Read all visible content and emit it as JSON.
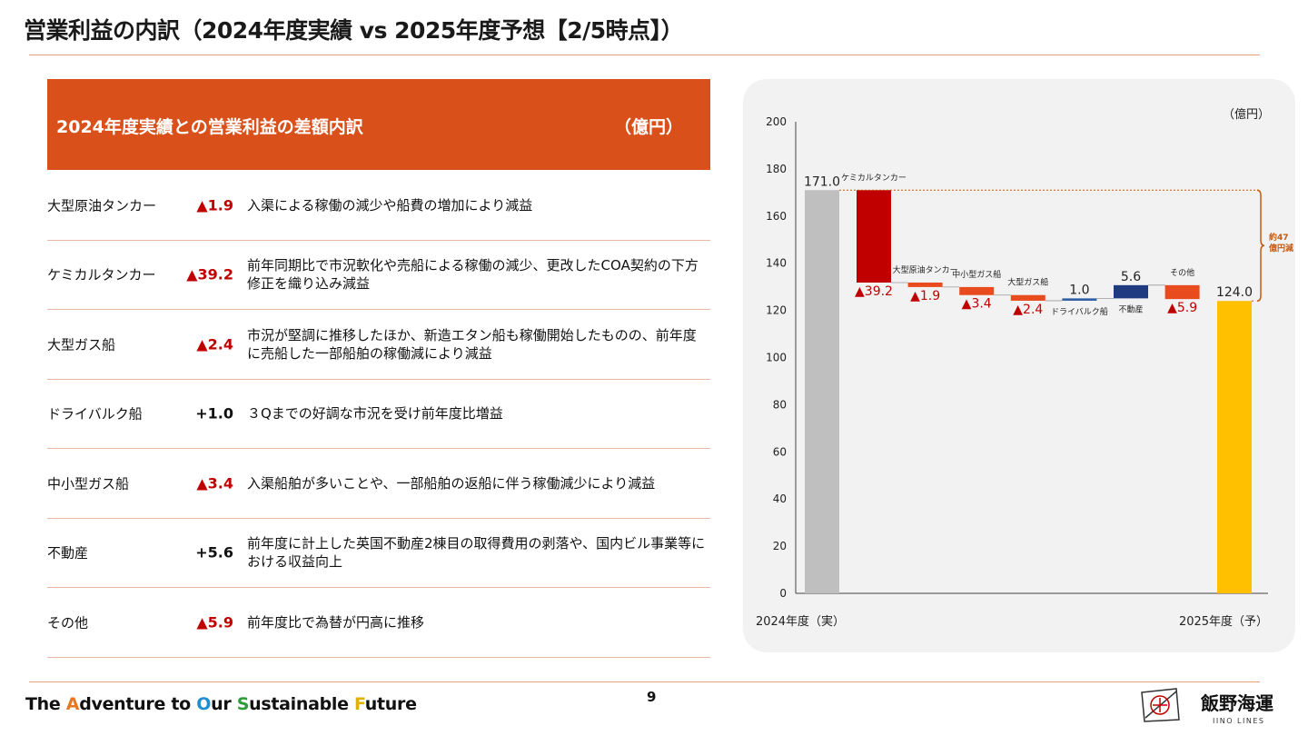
{
  "page": {
    "title": "営業利益の内訳（2024年度実績 vs 2025年度予想【2/5時点】）",
    "page_number": "9"
  },
  "table": {
    "header_title": "2024年度実績との営業利益の差額内訳",
    "header_unit": "（億円）",
    "rows": [
      {
        "segment": "大型原油タンカー",
        "value": "▲1.9",
        "description": "入渠による稼働の減少や船費の増加により減益"
      },
      {
        "segment": "ケミカルタンカー",
        "value": "▲39.2",
        "description": "前年同期比で市況軟化や売船による稼働の減少、更改したCOA契約の下方修正を織り込み減益"
      },
      {
        "segment": "大型ガス船",
        "value": "▲2.4",
        "description": "市況が堅調に推移したほか、新造エタン船も稼働開始したものの、前年度に売船した一部船舶の稼働減により減益"
      },
      {
        "segment": "ドライバルク船",
        "value": "+1.0",
        "description": "３Qまでの好調な市況を受け前年度比増益"
      },
      {
        "segment": "中小型ガス船",
        "value": "▲3.4",
        "description": "入渠船舶が多いことや、一部船舶の返船に伴う稼働減少により減益"
      },
      {
        "segment": "不動産",
        "value": "+5.6",
        "description": "前年度に計上した英国不動産2棟目の取得費用の剥落や、国内ビル事業等における収益向上"
      },
      {
        "segment": "その他",
        "value": "▲5.9",
        "description": "前年度比で為替が円高に推移"
      }
    ]
  },
  "chart_data": {
    "type": "waterfall",
    "unit_label": "（億円）",
    "ylim": [
      0,
      200
    ],
    "yticks": [
      "0",
      "20",
      "40",
      "60",
      "80",
      "100",
      "120",
      "140",
      "160",
      "180",
      "200"
    ],
    "start": {
      "label": "2024年度（実）",
      "value": 171.0,
      "value_label": "171.0",
      "color": "#bfbfbf"
    },
    "end": {
      "label": "2025年度（予）",
      "value": 124.0,
      "value_label": "124.0",
      "color": "#ffc000"
    },
    "steps": [
      {
        "name": "ケミカルタンカー",
        "delta": -39.2,
        "value_label": "▲39.2",
        "color": "#c00000"
      },
      {
        "name": "大型原油タンカー",
        "delta": -1.9,
        "value_label": "▲1.9",
        "color": "#e84c1e"
      },
      {
        "name": "中小型ガス船",
        "delta": -3.4,
        "value_label": "▲3.4",
        "color": "#e84c1e"
      },
      {
        "name": "大型ガス船",
        "delta": -2.4,
        "value_label": "▲2.4",
        "color": "#e84c1e"
      },
      {
        "name": "ドライバルク船",
        "delta": 1.0,
        "value_label": "1.0",
        "color": "#2e5fa3"
      },
      {
        "name": "不動産",
        "delta": 5.6,
        "value_label": "5.6",
        "color": "#1f3a80"
      },
      {
        "name": "その他",
        "delta": -5.9,
        "value_label": "▲5.9",
        "color": "#e84c1e"
      }
    ],
    "annotation": "約47億円減",
    "annotation_color": "#c55a11"
  },
  "footer": {
    "slogan_parts": [
      "The ",
      "A",
      "dventure to ",
      "O",
      "ur ",
      "S",
      "ustainable ",
      "F",
      "uture"
    ],
    "company": "飯野海運",
    "company_en": "IINO LINES"
  }
}
